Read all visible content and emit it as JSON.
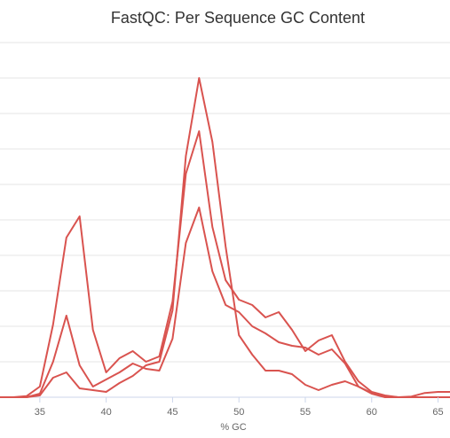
{
  "chart_data": {
    "type": "line",
    "title": "FastQC: Per Sequence GC Content",
    "xlabel": "% GC",
    "ylabel": "",
    "xlim": [
      32,
      65.9
    ],
    "ylim": [
      0,
      9
    ],
    "x_ticks": [
      35,
      40,
      45,
      50,
      55,
      60,
      65
    ],
    "y_gridlines": [
      0,
      1,
      2,
      3,
      4,
      5,
      6,
      7,
      8,
      9
    ],
    "grid": true,
    "legend": "none",
    "series_color": "#d9534f",
    "series": [
      {
        "points": [
          [
            32,
            0
          ],
          [
            33,
            0
          ],
          [
            34,
            0.03
          ],
          [
            35,
            0.3
          ],
          [
            36,
            2.05
          ],
          [
            37,
            4.5
          ],
          [
            38,
            5.1
          ],
          [
            39,
            1.9
          ],
          [
            40,
            0.7
          ],
          [
            41,
            1.1
          ],
          [
            42,
            1.3
          ],
          [
            43,
            1.0
          ],
          [
            44,
            1.15
          ],
          [
            45,
            2.7
          ],
          [
            46,
            6.3
          ],
          [
            47,
            7.5
          ],
          [
            48,
            4.8
          ],
          [
            49,
            3.3
          ],
          [
            50,
            2.75
          ],
          [
            51,
            2.6
          ],
          [
            52,
            2.25
          ],
          [
            53,
            2.4
          ],
          [
            54,
            1.9
          ],
          [
            55,
            1.3
          ],
          [
            56,
            1.6
          ],
          [
            57,
            1.75
          ],
          [
            58,
            1.0
          ],
          [
            59,
            0.45
          ],
          [
            60,
            0.15
          ],
          [
            61,
            0.05
          ],
          [
            62,
            0
          ],
          [
            63,
            0.02
          ],
          [
            64,
            0.12
          ],
          [
            65,
            0.15
          ],
          [
            65.9,
            0.15
          ]
        ]
      },
      {
        "points": [
          [
            32,
            0
          ],
          [
            33,
            0
          ],
          [
            34,
            0
          ],
          [
            35,
            0.1
          ],
          [
            36,
            1.0
          ],
          [
            37,
            2.3
          ],
          [
            38,
            0.9
          ],
          [
            39,
            0.3
          ],
          [
            40,
            0.5
          ],
          [
            41,
            0.7
          ],
          [
            42,
            0.95
          ],
          [
            43,
            0.8
          ],
          [
            44,
            0.75
          ],
          [
            45,
            1.65
          ],
          [
            46,
            4.35
          ],
          [
            47,
            5.35
          ],
          [
            48,
            3.55
          ],
          [
            49,
            2.6
          ],
          [
            50,
            2.4
          ],
          [
            51,
            2.0
          ],
          [
            52,
            1.8
          ],
          [
            53,
            1.55
          ],
          [
            54,
            1.45
          ],
          [
            55,
            1.4
          ],
          [
            56,
            1.2
          ],
          [
            57,
            1.35
          ],
          [
            58,
            0.95
          ],
          [
            59,
            0.3
          ],
          [
            60,
            0.1
          ],
          [
            61,
            0
          ],
          [
            62,
            0
          ],
          [
            63,
            0
          ],
          [
            64,
            0
          ],
          [
            65,
            0
          ],
          [
            65.9,
            0
          ]
        ]
      },
      {
        "points": [
          [
            32,
            0
          ],
          [
            33,
            0
          ],
          [
            34,
            0
          ],
          [
            35,
            0.05
          ],
          [
            36,
            0.55
          ],
          [
            37,
            0.7
          ],
          [
            38,
            0.25
          ],
          [
            39,
            0.2
          ],
          [
            40,
            0.15
          ],
          [
            41,
            0.4
          ],
          [
            42,
            0.6
          ],
          [
            43,
            0.9
          ],
          [
            44,
            1.0
          ],
          [
            45,
            2.45
          ],
          [
            46,
            6.8
          ],
          [
            47,
            9.0
          ],
          [
            48,
            7.2
          ],
          [
            49,
            4.25
          ],
          [
            50,
            1.75
          ],
          [
            51,
            1.2
          ],
          [
            52,
            0.75
          ],
          [
            53,
            0.75
          ],
          [
            54,
            0.65
          ],
          [
            55,
            0.35
          ],
          [
            56,
            0.2
          ],
          [
            57,
            0.35
          ],
          [
            58,
            0.45
          ],
          [
            59,
            0.3
          ],
          [
            60,
            0.12
          ],
          [
            61,
            0.03
          ],
          [
            62,
            0
          ],
          [
            63,
            0
          ],
          [
            64,
            0
          ],
          [
            65,
            0
          ],
          [
            65.9,
            0
          ]
        ]
      }
    ]
  }
}
